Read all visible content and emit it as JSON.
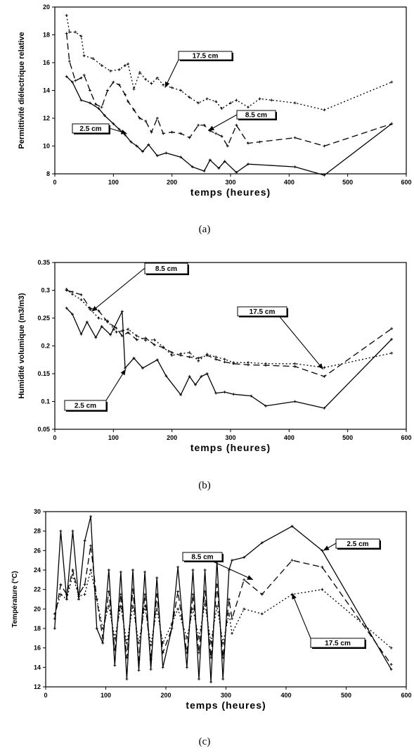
{
  "chart_data": [
    {
      "type": "line",
      "caption": "(a)",
      "xlabel": "temps (heures)",
      "ylabel": "Permittivité diélectrique relative",
      "xlim": [
        0,
        600
      ],
      "ylim": [
        8,
        20
      ],
      "xticks": [
        0,
        100,
        200,
        300,
        400,
        500,
        600
      ],
      "yticks": [
        8,
        10,
        12,
        14,
        16,
        18,
        20
      ],
      "grid": false,
      "series": [
        {
          "name": "17.5 cm",
          "style": "dotted",
          "x": [
            20,
            25,
            35,
            45,
            50,
            65,
            80,
            95,
            110,
            120,
            125,
            135,
            145,
            155,
            165,
            175,
            185,
            200,
            215,
            230,
            245,
            260,
            275,
            285,
            300,
            310,
            330,
            350,
            370,
            410,
            460,
            575
          ],
          "y": [
            19.4,
            18.2,
            18.2,
            17.9,
            16.5,
            16.3,
            15.8,
            15.4,
            15.5,
            15.8,
            15.9,
            14.1,
            15.3,
            14.8,
            14.5,
            14.9,
            14.4,
            14.2,
            14.0,
            13.5,
            13.1,
            13.4,
            13.2,
            12.7,
            13.1,
            13.3,
            12.8,
            13.4,
            13.3,
            13.1,
            12.6,
            14.6
          ]
        },
        {
          "name": "8.5 cm",
          "style": "dashed",
          "x": [
            20,
            25,
            35,
            45,
            50,
            60,
            70,
            80,
            90,
            100,
            110,
            120,
            125,
            135,
            145,
            155,
            165,
            175,
            185,
            200,
            215,
            230,
            245,
            255,
            265,
            275,
            285,
            295,
            310,
            330,
            350,
            410,
            460,
            575
          ],
          "y": [
            18.1,
            16.1,
            14.7,
            14.9,
            15.1,
            14.0,
            13.0,
            12.8,
            14.0,
            14.6,
            14.4,
            13.7,
            13.2,
            12.6,
            12.0,
            11.8,
            11.0,
            12.0,
            10.9,
            11.0,
            10.9,
            10.6,
            11.5,
            11.5,
            11.1,
            10.9,
            10.7,
            10.0,
            11.5,
            10.2,
            10.3,
            10.6,
            10.0,
            11.6
          ]
        },
        {
          "name": "2.5 cm",
          "style": "solid",
          "x": [
            20,
            30,
            45,
            60,
            75,
            85,
            100,
            110,
            120,
            130,
            140,
            150,
            160,
            175,
            190,
            215,
            235,
            255,
            265,
            280,
            290,
            310,
            330,
            410,
            460,
            575
          ],
          "y": [
            15.0,
            14.6,
            13.3,
            13.1,
            12.7,
            12.2,
            11.6,
            11.2,
            10.8,
            10.3,
            10.0,
            9.6,
            10.1,
            9.3,
            9.5,
            9.2,
            8.5,
            8.2,
            9.0,
            8.4,
            8.9,
            8.1,
            8.7,
            8.5,
            7.9,
            11.6
          ]
        }
      ],
      "annotations": [
        "17.5 cm",
        "8.5 cm",
        "2.5 cm"
      ]
    },
    {
      "type": "line",
      "caption": "(b)",
      "xlabel": "temps (heures)",
      "ylabel": "Humidité volumique (m3/m3)",
      "xlim": [
        0,
        600
      ],
      "ylim": [
        0.05,
        0.35
      ],
      "xticks": [
        0,
        100,
        200,
        300,
        400,
        500,
        600
      ],
      "yticks": [
        0.05,
        0.1,
        0.15,
        0.2,
        0.25,
        0.3,
        0.35
      ],
      "ytick_labels": [
        "0.05",
        "0.1",
        "0.15",
        "0.2",
        "0.25",
        "0.3",
        "0.35"
      ],
      "grid": false,
      "series": [
        {
          "name": "8.5 cm",
          "style": "dashed",
          "x": [
            20,
            30,
            45,
            60,
            75,
            90,
            105,
            115,
            125,
            140,
            155,
            170,
            185,
            200,
            215,
            230,
            245,
            260,
            275,
            290,
            305,
            330,
            360,
            410,
            460,
            575
          ],
          "y": [
            0.3,
            0.297,
            0.292,
            0.268,
            0.263,
            0.243,
            0.232,
            0.218,
            0.224,
            0.211,
            0.214,
            0.202,
            0.197,
            0.188,
            0.183,
            0.18,
            0.178,
            0.183,
            0.176,
            0.171,
            0.168,
            0.166,
            0.165,
            0.163,
            0.145,
            0.231
          ]
        },
        {
          "name": "17.5 cm",
          "style": "dotted",
          "x": [
            20,
            30,
            45,
            60,
            75,
            90,
            105,
            115,
            125,
            140,
            155,
            170,
            185,
            200,
            215,
            230,
            245,
            260,
            275,
            290,
            305,
            330,
            360,
            410,
            460,
            575
          ],
          "y": [
            0.302,
            0.293,
            0.283,
            0.266,
            0.25,
            0.245,
            0.225,
            0.227,
            0.23,
            0.218,
            0.21,
            0.211,
            0.198,
            0.183,
            0.186,
            0.188,
            0.173,
            0.185,
            0.18,
            0.176,
            0.17,
            0.17,
            0.168,
            0.168,
            0.161,
            0.187
          ]
        },
        {
          "name": "2.5 cm",
          "style": "solid",
          "x": [
            20,
            30,
            45,
            55,
            70,
            80,
            95,
            100,
            115,
            120,
            135,
            150,
            175,
            190,
            215,
            230,
            240,
            250,
            260,
            275,
            290,
            305,
            335,
            360,
            410,
            460,
            575
          ],
          "y": [
            0.268,
            0.257,
            0.221,
            0.243,
            0.215,
            0.235,
            0.22,
            0.23,
            0.262,
            0.16,
            0.178,
            0.16,
            0.175,
            0.146,
            0.112,
            0.145,
            0.13,
            0.145,
            0.15,
            0.115,
            0.117,
            0.113,
            0.11,
            0.092,
            0.1,
            0.088,
            0.212
          ]
        }
      ],
      "annotations": [
        "8.5 cm",
        "17.5 cm",
        "2.5 cm"
      ]
    },
    {
      "type": "line",
      "caption": "(c)",
      "xlabel": "temps (heures)",
      "ylabel": "Température (°C)",
      "xlim": [
        0,
        600
      ],
      "ylim": [
        12,
        30
      ],
      "xticks": [
        0,
        100,
        200,
        300,
        400,
        500,
        600
      ],
      "yticks": [
        12,
        14,
        16,
        18,
        20,
        22,
        24,
        26,
        28,
        30
      ],
      "grid": false,
      "series": [
        {
          "name": "2.5 cm",
          "style": "solid",
          "x": [
            15,
            25,
            35,
            45,
            55,
            65,
            75,
            85,
            95,
            105,
            115,
            125,
            135,
            145,
            155,
            165,
            175,
            185,
            195,
            210,
            220,
            235,
            245,
            255,
            265,
            275,
            285,
            295,
            305,
            310,
            330,
            360,
            410,
            460,
            575
          ],
          "y": [
            18.0,
            28.0,
            21.0,
            28.0,
            21.0,
            27.0,
            29.5,
            18.0,
            16.5,
            24.0,
            14.2,
            23.8,
            12.8,
            24.0,
            13.7,
            23.8,
            13.8,
            23.2,
            14.0,
            18.0,
            24.3,
            14.0,
            24.0,
            12.8,
            24.0,
            12.5,
            25.0,
            12.8,
            24.0,
            25.0,
            25.3,
            26.8,
            28.5,
            26.0,
            13.8
          ]
        },
        {
          "name": "8.5 cm",
          "style": "dashed",
          "x": [
            15,
            25,
            35,
            45,
            55,
            65,
            75,
            85,
            95,
            105,
            115,
            125,
            135,
            145,
            155,
            165,
            175,
            185,
            195,
            210,
            220,
            235,
            245,
            255,
            265,
            275,
            285,
            295,
            305,
            310,
            330,
            360,
            410,
            460,
            575
          ],
          "y": [
            19.0,
            22.5,
            21.5,
            24.0,
            21.5,
            22.5,
            26.5,
            21.0,
            17.0,
            21.8,
            15.8,
            21.5,
            15.0,
            22.0,
            14.8,
            21.5,
            14.8,
            21.5,
            15.5,
            18.0,
            21.8,
            15.5,
            21.5,
            15.5,
            21.8,
            15.0,
            22.5,
            15.0,
            21.0,
            19.0,
            23.0,
            21.5,
            25.0,
            24.3,
            14.3
          ]
        },
        {
          "name": "17.5 cm",
          "style": "dotted",
          "x": [
            15,
            25,
            35,
            45,
            55,
            65,
            75,
            85,
            95,
            105,
            115,
            125,
            135,
            145,
            155,
            165,
            175,
            185,
            195,
            210,
            220,
            235,
            245,
            255,
            265,
            275,
            285,
            295,
            305,
            310,
            330,
            360,
            410,
            460,
            575
          ],
          "y": [
            19.5,
            21.5,
            21.0,
            23.5,
            21.3,
            21.5,
            24.0,
            21.0,
            18.0,
            20.3,
            17.0,
            20.3,
            16.5,
            20.3,
            16.5,
            20.3,
            16.3,
            20.0,
            16.5,
            18.5,
            20.0,
            17.0,
            20.0,
            17.0,
            20.5,
            16.5,
            20.3,
            16.5,
            19.5,
            17.5,
            20.0,
            19.5,
            21.5,
            22.0,
            16.0
          ]
        }
      ],
      "annotations": [
        "2.5 cm",
        "8.5 cm",
        "17.5 cm"
      ]
    }
  ]
}
